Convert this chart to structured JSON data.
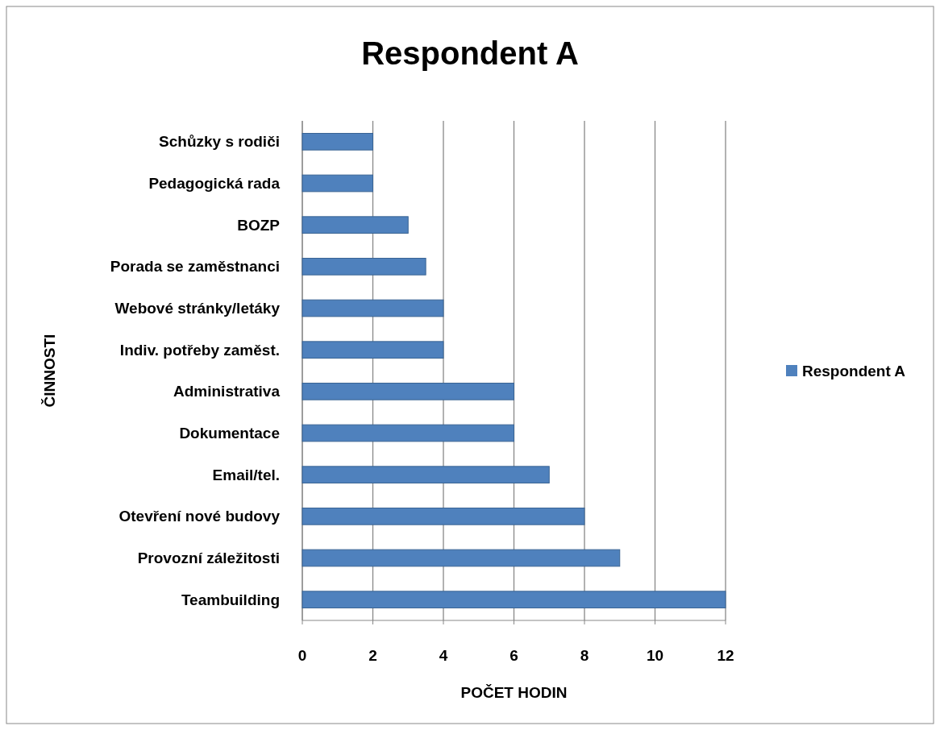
{
  "chart_data": {
    "type": "bar",
    "orientation": "horizontal",
    "title": "Respondent A",
    "xlabel": "POČET HODIN",
    "ylabel": "ČINNOSTI",
    "categories": [
      "Schůzky s rodiči",
      "Pedagogická rada",
      "BOZP",
      "Porada se zaměstnanci",
      "Webové stránky/letáky",
      "Indiv. potřeby zaměst.",
      "Administrativa",
      "Dokumentace",
      "Email/tel.",
      "Otevření nové budovy",
      "Provozní záležitosti",
      "Teambuilding"
    ],
    "series": [
      {
        "name": "Respondent A",
        "color": "#4f81bd",
        "values": [
          2,
          2,
          3,
          3.5,
          4,
          4,
          6,
          6,
          7,
          8,
          9,
          12
        ]
      }
    ],
    "xlim": [
      0,
      12
    ],
    "xticks": [
      0,
      2,
      4,
      6,
      8,
      10,
      12
    ],
    "grid": "x",
    "legend": "right"
  }
}
